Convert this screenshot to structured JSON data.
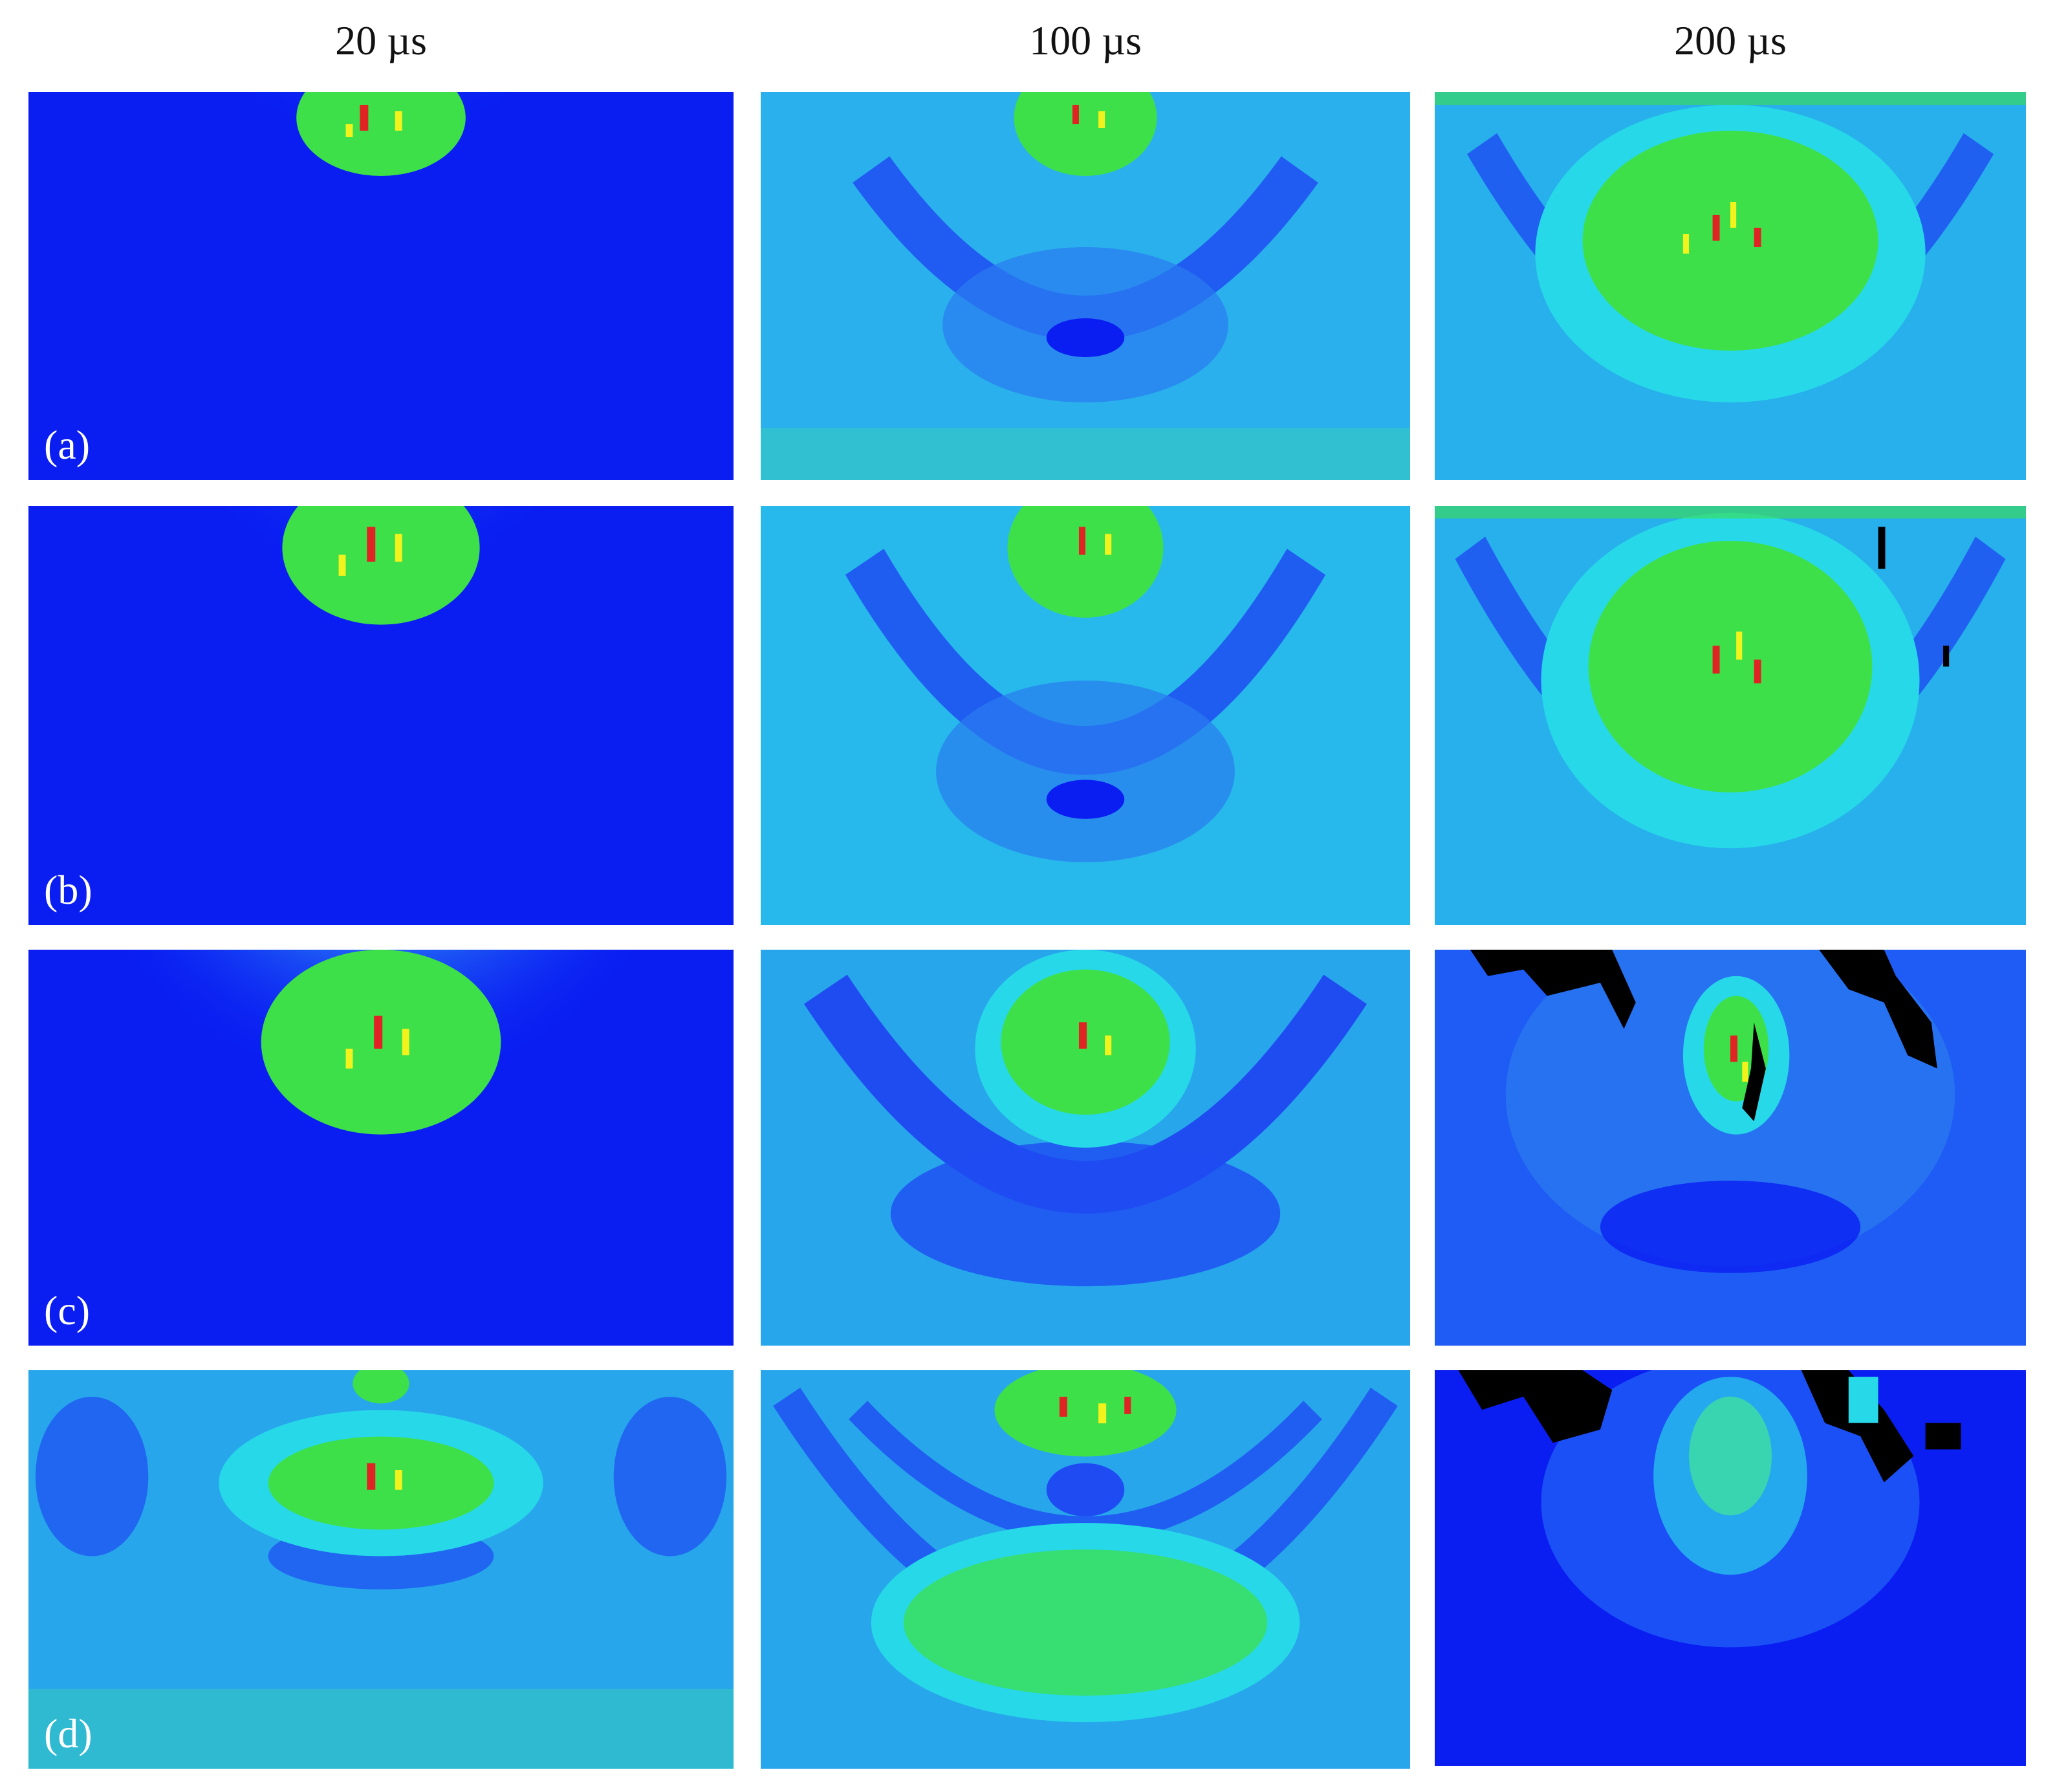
{
  "column_headers": [
    "20 µs",
    "100 µs",
    "200 µs"
  ],
  "row_labels": [
    "(a)",
    "(b)",
    "(c)",
    "(d)"
  ],
  "colors": {
    "background": "#0a1ef2",
    "low": "#1e5cf5",
    "mid": "#27d8e8",
    "high": "#3ee04a",
    "peak_yellow": "#f2f21c",
    "peak_red": "#e02424",
    "damage": "#000000",
    "label_text": "#ffffff"
  }
}
